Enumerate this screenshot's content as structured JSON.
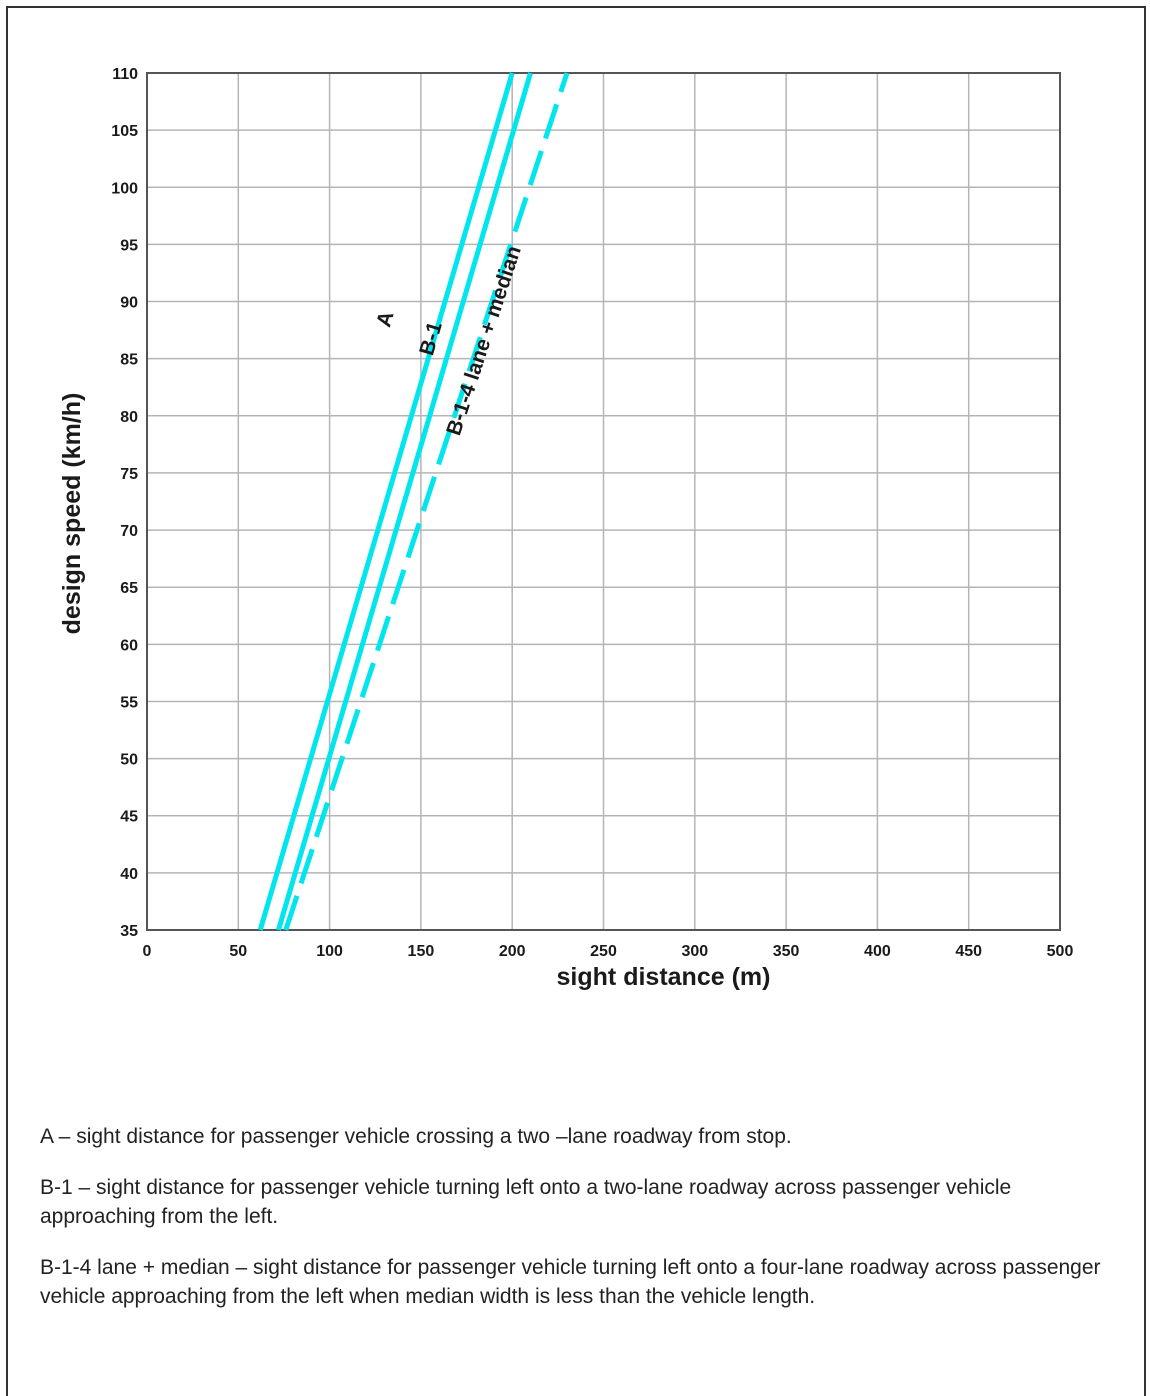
{
  "chart_data": {
    "type": "line",
    "title": "",
    "xlabel": "sight distance (m)",
    "ylabel": "design speed (km/h)",
    "xlim": [
      0,
      500
    ],
    "ylim": [
      35,
      110
    ],
    "xticks": [
      0,
      50,
      100,
      150,
      200,
      250,
      300,
      350,
      400,
      450,
      500
    ],
    "yticks": [
      35,
      40,
      45,
      50,
      55,
      60,
      65,
      70,
      75,
      80,
      85,
      90,
      95,
      100,
      105,
      110
    ],
    "grid": true,
    "legend": "none",
    "line_color": "#00e5ee",
    "series": [
      {
        "name": "A",
        "style": "solid",
        "x": [
          62,
          200
        ],
        "y": [
          35,
          110
        ]
      },
      {
        "name": "B-1",
        "style": "solid",
        "x": [
          72,
          210
        ],
        "y": [
          35,
          110
        ]
      },
      {
        "name": "B-1-4 lane + median",
        "style": "dashed",
        "x": [
          76,
          230
        ],
        "y": [
          35,
          110
        ]
      }
    ]
  },
  "notes": [
    {
      "key": "A",
      "text": "A – sight distance for passenger vehicle crossing a two –lane roadway from stop."
    },
    {
      "key": "B-1",
      "text": "B-1 – sight distance for passenger vehicle turning left onto a two-lane roadway across passenger vehicle approaching from the left."
    },
    {
      "key": "B-1-4",
      "text": "B-1-4 lane + median – sight distance for passenger vehicle turning left onto a four-lane roadway across passenger vehicle approaching from the left when median width is less than the vehicle length."
    }
  ]
}
